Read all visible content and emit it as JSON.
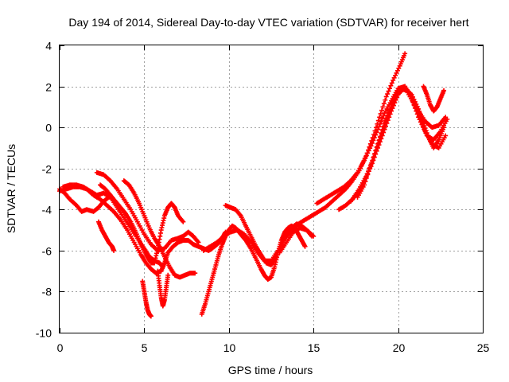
{
  "chart_data": {
    "type": "scatter",
    "title": "Day 194 of 2014, Sidereal Day-to-day VTEC variation (SDTVAR) for receiver hert",
    "xlabel": "GPS time / hours",
    "ylabel": "SDTVAR / TECUs",
    "xlim": [
      0,
      25
    ],
    "ylim": [
      -10,
      4
    ],
    "xticks": [
      0,
      5,
      10,
      15,
      20,
      25
    ],
    "yticks": [
      -10,
      -8,
      -6,
      -4,
      -2,
      0,
      2,
      4
    ],
    "grid": true,
    "marker": "plus",
    "color": "#ff0000",
    "series": [
      {
        "x": [
          0,
          0.3,
          0.6,
          1.0,
          1.3,
          1.6,
          2.0,
          2.3,
          2.6,
          2.9
        ],
        "y": [
          -3.0,
          -3.2,
          -3.5,
          -3.8,
          -4.1,
          -4.0,
          -4.1,
          -3.9,
          -3.6,
          -3.4
        ]
      },
      {
        "x": [
          0,
          0.4,
          0.8,
          1.2,
          1.6,
          2.0,
          2.4,
          2.8,
          3.2,
          3.6,
          4.0,
          4.4,
          4.8,
          5.1,
          5.4,
          5.7,
          6.0,
          6.2,
          6.4,
          6.7,
          7.0,
          7.3,
          7.6,
          7.9,
          8.2,
          8.5,
          8.8,
          9.0,
          9.3,
          9.6,
          9.8
        ],
        "y": [
          -3.1,
          -3.0,
          -2.9,
          -2.9,
          -3.0,
          -3.3,
          -3.5,
          -3.8,
          -4.1,
          -4.5,
          -5.0,
          -5.6,
          -6.2,
          -6.6,
          -6.9,
          -7.1,
          -7.0,
          -6.6,
          -6.1,
          -5.8,
          -5.6,
          -5.5,
          -5.5,
          -5.7,
          -5.8,
          -5.9,
          -6.0,
          -5.9,
          -5.7,
          -5.4,
          -5.1
        ]
      },
      {
        "x": [
          0.2,
          0.6,
          1.0,
          1.4,
          1.8,
          2.2,
          2.6,
          3.0,
          3.4,
          3.8,
          4.2,
          4.6,
          5.0,
          5.3,
          5.6,
          5.9,
          6.1
        ],
        "y": [
          -2.9,
          -2.8,
          -2.8,
          -2.9,
          -3.1,
          -3.3,
          -3.2,
          -3.4,
          -3.9,
          -4.4,
          -4.9,
          -5.4,
          -5.9,
          -6.3,
          -6.5,
          -6.6,
          -6.8
        ]
      },
      {
        "x": [
          2.2,
          2.6,
          3.0,
          3.4,
          3.8,
          4.2,
          4.6,
          5.0,
          5.4,
          5.8,
          6.2,
          6.6,
          7.0,
          7.3,
          7.6,
          7.9,
          8.2
        ],
        "y": [
          -2.2,
          -2.3,
          -2.6,
          -3.0,
          -3.5,
          -4.0,
          -4.6,
          -5.2,
          -5.7,
          -6.0,
          -5.9,
          -5.5,
          -5.4,
          -5.3,
          -5.1,
          -5.3,
          -5.6
        ]
      },
      {
        "x": [
          2.4,
          2.7,
          3.0,
          3.3,
          3.6,
          3.9,
          4.2,
          4.5,
          4.8,
          5.1,
          5.4,
          5.6,
          5.8,
          6.0,
          6.2,
          6.4,
          6.6,
          6.8,
          7.0,
          7.3
        ],
        "y": [
          -2.8,
          -3.0,
          -3.3,
          -3.6,
          -3.9,
          -4.2,
          -4.6,
          -5.1,
          -5.7,
          -6.2,
          -6.6,
          -6.6,
          -5.9,
          -5.0,
          -4.3,
          -3.9,
          -3.7,
          -3.9,
          -4.3,
          -4.6
        ]
      },
      {
        "x": [
          3.8,
          4.1,
          4.4,
          4.7,
          5.0,
          5.3,
          5.6,
          5.9,
          6.2,
          6.5,
          6.8,
          7.1,
          7.4,
          7.7,
          8.0
        ],
        "y": [
          -2.6,
          -2.8,
          -3.2,
          -3.7,
          -4.3,
          -4.9,
          -5.4,
          -5.8,
          -6.3,
          -6.8,
          -7.2,
          -7.3,
          -7.2,
          -7.1,
          -7.1
        ]
      },
      {
        "x": [
          2.3,
          2.5,
          2.7,
          2.9,
          3.1,
          3.2
        ],
        "y": [
          -4.6,
          -5.0,
          -5.3,
          -5.6,
          -5.8,
          -6.0
        ]
      },
      {
        "x": [
          4.9,
          5.0,
          5.1,
          5.2,
          5.3,
          5.4
        ],
        "y": [
          -7.5,
          -8.0,
          -8.5,
          -8.9,
          -9.1,
          -9.2
        ]
      },
      {
        "x": [
          5.8,
          5.9,
          6.0,
          6.1,
          6.2,
          6.3,
          6.4
        ],
        "y": [
          -7.0,
          -7.7,
          -8.3,
          -8.7,
          -8.4,
          -7.8,
          -7.2
        ]
      },
      {
        "x": [
          8.4,
          8.6,
          8.8,
          9.0,
          9.2,
          9.4,
          9.6,
          9.8,
          10.0,
          10.2,
          10.4,
          10.6,
          10.8,
          11.0,
          11.3,
          11.6,
          11.9,
          12.1,
          12.3,
          12.5,
          12.7,
          12.9,
          13.1,
          13.3,
          13.5,
          13.7,
          13.9,
          14.1,
          14.3,
          14.5
        ],
        "y": [
          -9.1,
          -8.6,
          -8.0,
          -7.4,
          -6.8,
          -6.2,
          -5.7,
          -5.3,
          -5.0,
          -4.8,
          -4.9,
          -5.1,
          -5.3,
          -5.5,
          -5.9,
          -6.4,
          -6.9,
          -7.2,
          -7.4,
          -7.3,
          -6.8,
          -6.1,
          -5.5,
          -5.1,
          -4.9,
          -4.8,
          -4.9,
          -5.2,
          -5.5,
          -5.8
        ]
      },
      {
        "x": [
          9.8,
          10.1,
          10.4,
          10.7,
          11.0,
          11.3,
          11.6,
          11.9,
          12.2,
          12.5,
          12.8,
          13.1,
          13.4,
          13.7,
          14.0,
          14.3,
          14.6,
          14.9
        ],
        "y": [
          -3.8,
          -3.9,
          -4.0,
          -4.3,
          -4.8,
          -5.3,
          -5.8,
          -6.2,
          -6.6,
          -6.7,
          -6.3,
          -5.7,
          -5.2,
          -4.9,
          -4.7,
          -4.8,
          -5.0,
          -5.3
        ]
      },
      {
        "x": [
          8.5,
          8.9,
          9.3,
          9.7,
          10.1,
          10.5,
          10.9,
          11.3,
          11.7,
          12.1,
          12.5,
          12.9,
          13.3,
          13.7,
          14.1,
          14.5,
          14.9,
          15.3,
          15.7,
          16.1,
          16.5,
          16.9,
          17.3,
          17.7,
          18.1,
          18.5,
          18.9,
          19.3,
          19.7,
          20.1,
          20.4
        ],
        "y": [
          -6.0,
          -5.8,
          -5.6,
          -5.3,
          -5.1,
          -5.0,
          -5.2,
          -5.6,
          -6.1,
          -6.5,
          -6.5,
          -6.0,
          -5.4,
          -5.0,
          -4.7,
          -4.5,
          -4.3,
          -4.1,
          -3.9,
          -3.6,
          -3.3,
          -3.0,
          -2.6,
          -2.1,
          -1.4,
          -0.5,
          0.5,
          1.5,
          2.3,
          3.0,
          3.6
        ]
      },
      {
        "x": [
          15.2,
          15.6,
          16.0,
          16.4,
          16.8,
          17.2,
          17.6,
          18.0,
          18.4,
          18.8,
          19.2,
          19.6,
          20.0,
          20.4,
          20.8,
          21.2,
          21.6,
          22.0,
          22.4,
          22.8
        ],
        "y": [
          -3.7,
          -3.5,
          -3.3,
          -3.1,
          -2.9,
          -2.6,
          -2.2,
          -1.6,
          -0.9,
          -0.1,
          0.7,
          1.3,
          1.9,
          2.0,
          1.5,
          0.8,
          0.3,
          0.0,
          0.1,
          0.5
        ]
      },
      {
        "x": [
          16.5,
          16.9,
          17.3,
          17.7,
          18.1,
          18.5,
          18.9,
          19.3,
          19.7,
          20.1,
          20.5,
          20.9,
          21.3,
          21.7,
          22.1,
          22.5,
          22.9
        ],
        "y": [
          -4.0,
          -3.8,
          -3.5,
          -3.0,
          -2.4,
          -1.6,
          -0.6,
          0.4,
          1.3,
          1.9,
          1.8,
          1.2,
          0.4,
          -0.4,
          -0.6,
          -0.2,
          0.4
        ]
      },
      {
        "x": [
          17.6,
          18.0,
          18.4,
          18.8,
          19.2,
          19.6,
          20.0,
          20.4,
          20.8,
          21.2,
          21.5,
          21.8,
          22.1,
          22.4,
          22.7
        ],
        "y": [
          -3.4,
          -2.8,
          -1.8,
          -0.8,
          0.2,
          1.0,
          1.7,
          1.9,
          1.6,
          0.9,
          0.2,
          -0.5,
          -1.0,
          -0.6,
          0.0
        ]
      },
      {
        "x": [
          17.2,
          17.6,
          18.0,
          18.4,
          18.8,
          19.2,
          19.6,
          20.0,
          20.4,
          20.8,
          21.2,
          21.6,
          22.0,
          22.4,
          22.8
        ],
        "y": [
          -3.6,
          -3.2,
          -2.6,
          -1.9,
          -1.0,
          -0.1,
          0.8,
          1.6,
          2.0,
          1.4,
          0.5,
          -0.2,
          -0.8,
          -1.0,
          -0.4
        ]
      },
      {
        "x": [
          21.5,
          21.7,
          21.9,
          22.1,
          22.3,
          22.5,
          22.7
        ],
        "y": [
          2.0,
          1.6,
          1.1,
          0.8,
          1.0,
          1.4,
          1.8
        ]
      },
      {
        "x": [
          13.0,
          13.4,
          13.8,
          14.2,
          14.6,
          15.0
        ],
        "y": [
          -6.1,
          -5.6,
          -5.1,
          -4.9,
          -5.0,
          -5.3
        ]
      }
    ]
  }
}
